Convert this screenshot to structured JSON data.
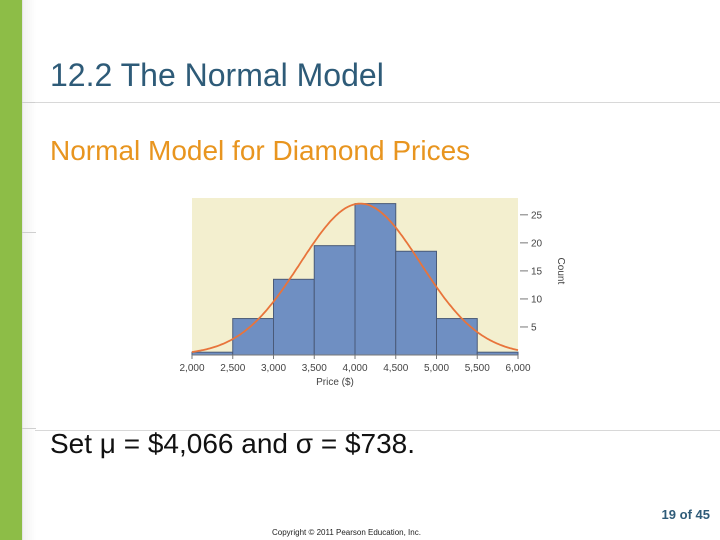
{
  "slide": {
    "title": "12.2 The Normal Model",
    "subtitle": "Normal Model for Diamond Prices",
    "statement": "Set μ = $4,066 and σ = $738.",
    "page_current": "19",
    "page_of": "of",
    "page_total": "45",
    "copyright": "Copyright © 2011 Pearson Education, Inc."
  },
  "colors": {
    "accent_green": "#8dbd47",
    "title_blue": "#2e5b78",
    "subtitle_orange": "#e8951f",
    "chart_background": "#f3efcf",
    "bar_fill": "#6f8fc2",
    "curve": "#e8743b"
  },
  "chart_data": {
    "type": "bar",
    "subtype": "histogram-with-normal-curve",
    "xlabel": "Price ($)",
    "ylabel": "Count",
    "xlim": [
      2000,
      6000
    ],
    "ylim": [
      0,
      28
    ],
    "x_ticks": [
      2000,
      2500,
      3000,
      3500,
      4000,
      4500,
      5000,
      5500,
      6000
    ],
    "x_tick_labels": [
      "2,000",
      "2,500",
      "3,000",
      "3,500",
      "4,000",
      "4,500",
      "5,000",
      "5,500",
      "6,000"
    ],
    "y_ticks": [
      5,
      10,
      15,
      20,
      25
    ],
    "y_tick_labels": [
      "5",
      "10",
      "15",
      "20",
      "25"
    ],
    "y_axis_side": "right",
    "bins": [
      {
        "start": 2000,
        "end": 2500,
        "count": 0.5
      },
      {
        "start": 2500,
        "end": 3000,
        "count": 6.5
      },
      {
        "start": 3000,
        "end": 3500,
        "count": 13.5
      },
      {
        "start": 3500,
        "end": 4000,
        "count": 19.5
      },
      {
        "start": 4000,
        "end": 4500,
        "count": 27
      },
      {
        "start": 4500,
        "end": 5000,
        "count": 18.5
      },
      {
        "start": 5000,
        "end": 5500,
        "count": 6.5
      },
      {
        "start": 5500,
        "end": 6000,
        "count": 0.5
      }
    ],
    "normal_curve": {
      "mean": 4066,
      "sd": 738,
      "peak": 27
    },
    "grid": false
  }
}
